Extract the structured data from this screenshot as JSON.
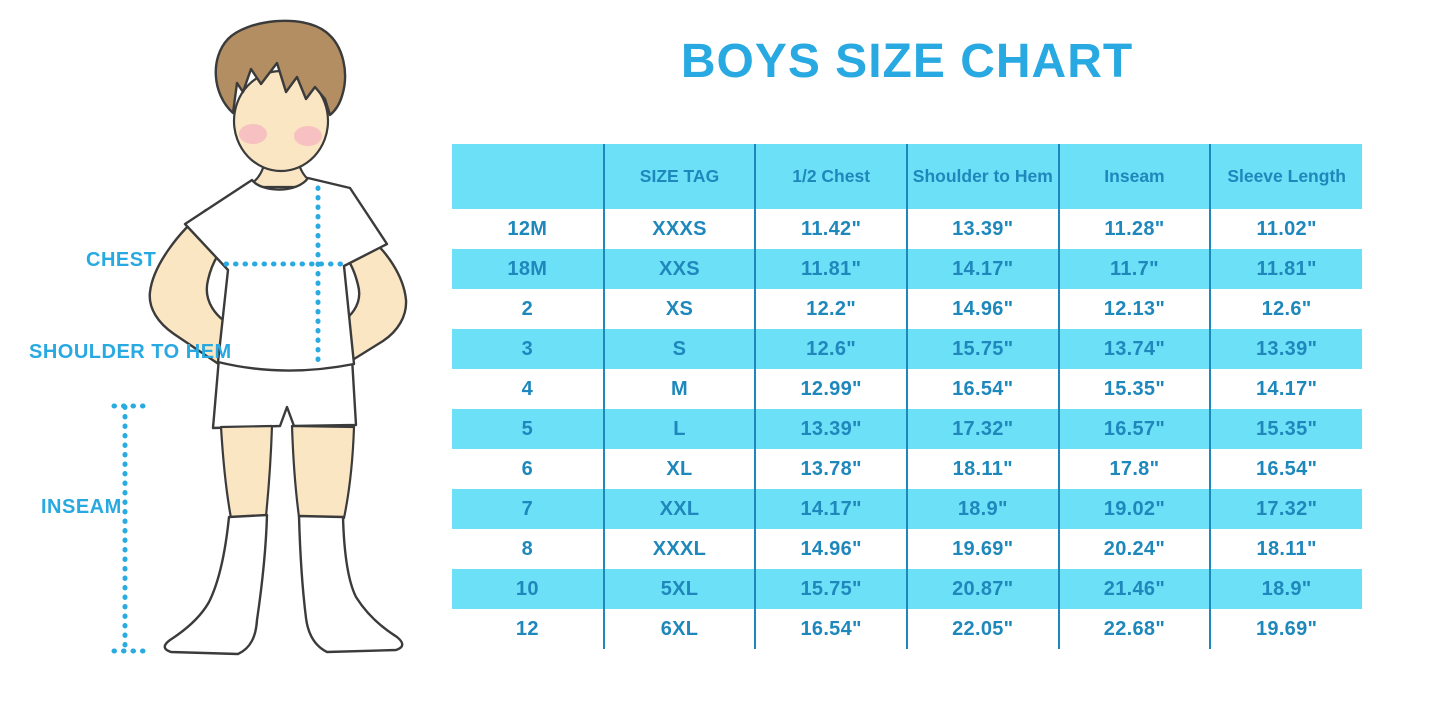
{
  "labels": {
    "chest": "CHEST",
    "shoulder_to_hem": "SHOULDER TO HEM",
    "inseam": "INSEAM"
  },
  "icons": {
    "boy_illustration": "boy-with-measurement-lines",
    "measure_lines": [
      "chest-dotted-line",
      "shoulder-to-hem-dotted-line",
      "inseam-dotted-line"
    ]
  },
  "colors": {
    "accent_blue": "#29A9E1",
    "dotted_line": "#29ABE2",
    "stripe_cyan": "#6CE0F7",
    "table_text": "#1E87BB",
    "table_line": "#1E87BB",
    "skin": "#FBE6C3",
    "hair": "#B28E62",
    "blush": "#F4A9BE",
    "outline": "#3B3B3B"
  },
  "chart_data": {
    "type": "table",
    "title": "BOYS SIZE CHART",
    "columns": [
      "",
      "SIZE TAG",
      "1/2 Chest",
      "Shoulder to Hem",
      "Inseam",
      "Sleeve Length"
    ],
    "rows": [
      [
        "12M",
        "XXXS",
        "11.42\"",
        "13.39\"",
        "11.28\"",
        "11.02\""
      ],
      [
        "18M",
        "XXS",
        "11.81\"",
        "14.17\"",
        "11.7\"",
        "11.81\""
      ],
      [
        "2",
        "XS",
        "12.2\"",
        "14.96\"",
        "12.13\"",
        "12.6\""
      ],
      [
        "3",
        "S",
        "12.6\"",
        "15.75\"",
        "13.74\"",
        "13.39\""
      ],
      [
        "4",
        "M",
        "12.99\"",
        "16.54\"",
        "15.35\"",
        "14.17\""
      ],
      [
        "5",
        "L",
        "13.39\"",
        "17.32\"",
        "16.57\"",
        "15.35\""
      ],
      [
        "6",
        "XL",
        "13.78\"",
        "18.11\"",
        "17.8\"",
        "16.54\""
      ],
      [
        "7",
        "XXL",
        "14.17\"",
        "18.9\"",
        "19.02\"",
        "17.32\""
      ],
      [
        "8",
        "XXXL",
        "14.96\"",
        "19.69\"",
        "20.24\"",
        "18.11\""
      ],
      [
        "10",
        "5XL",
        "15.75\"",
        "20.87\"",
        "21.46\"",
        "18.9\""
      ],
      [
        "12",
        "6XL",
        "16.54\"",
        "22.05\"",
        "22.68\"",
        "19.69\""
      ]
    ],
    "units": "inches",
    "stripe_pattern": "header cyan, body rows alternate white/cyan starting white",
    "grid": "vertical column separators only, no outer border"
  }
}
